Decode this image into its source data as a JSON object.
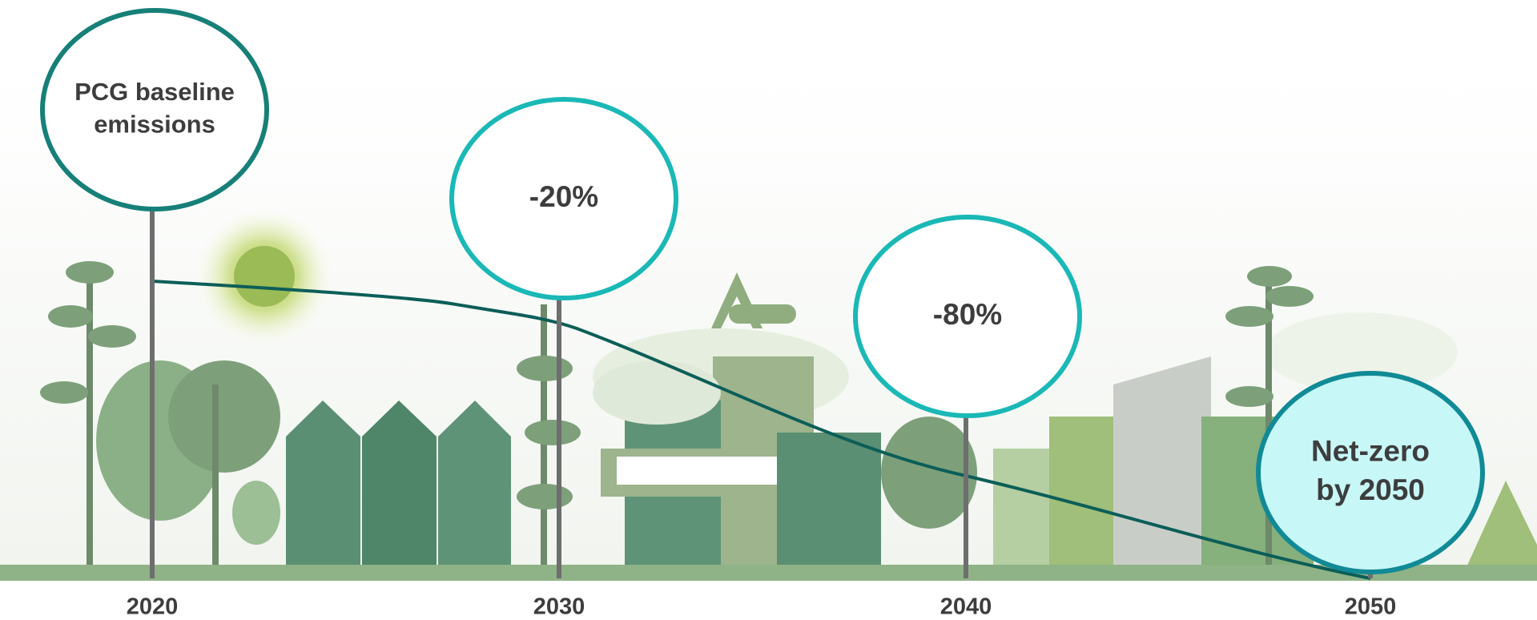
{
  "milestones": [
    {
      "year": "2020",
      "label": [
        "PCG baseline",
        "emissions"
      ]
    },
    {
      "year": "2030",
      "label": [
        "-20%"
      ]
    },
    {
      "year": "2040",
      "label": [
        "-80%"
      ]
    },
    {
      "year": "2050",
      "label": [
        "Net-zero",
        "by 2050"
      ]
    }
  ]
}
